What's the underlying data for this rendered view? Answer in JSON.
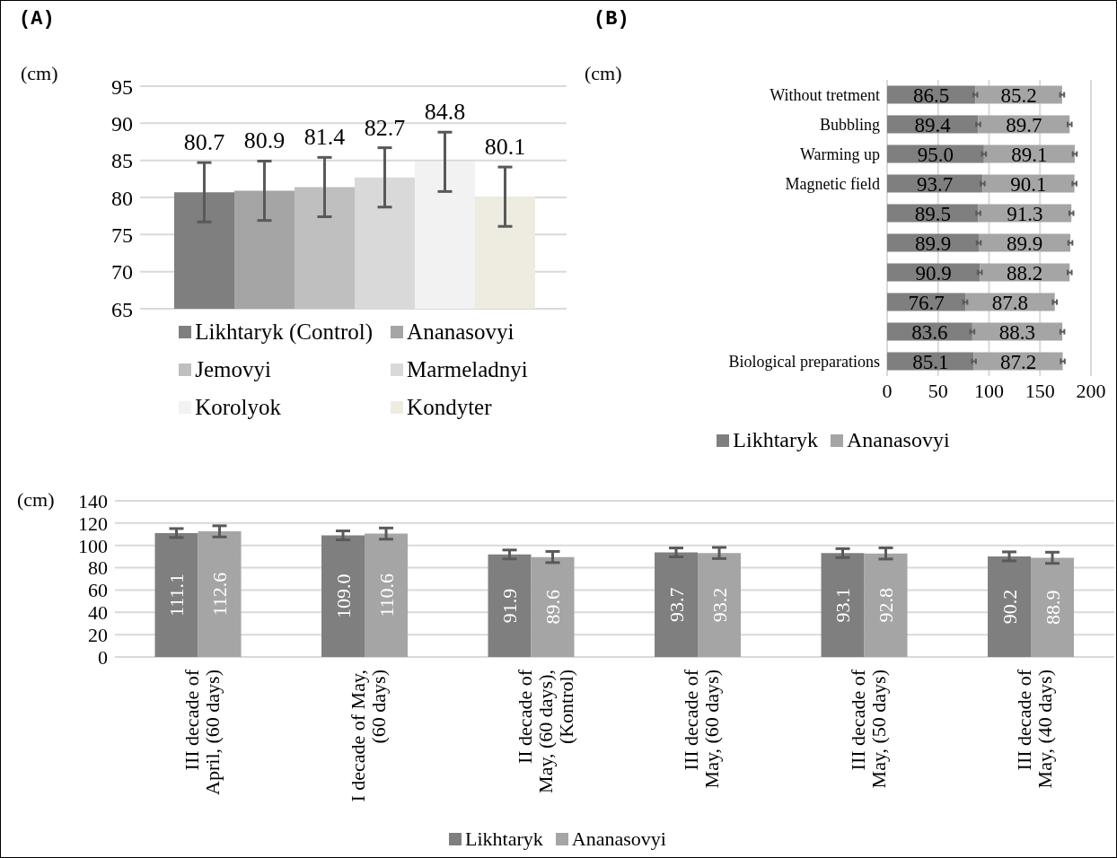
{
  "chart_data": [
    {
      "type": "bar",
      "title": "(A)",
      "ylabel": "(cm)",
      "categories": [
        null
      ],
      "series": [
        {
          "name": "Likhtaryk (Control)",
          "color": "#7f7f7f",
          "values": [
            80.7
          ],
          "errors": [
            4
          ]
        },
        {
          "name": "Ananasovyi",
          "color": "#a5a5a5",
          "values": [
            80.9
          ],
          "errors": [
            4
          ]
        },
        {
          "name": "Jemovyi",
          "color": "#bfbfbf",
          "values": [
            81.4
          ],
          "errors": [
            4
          ]
        },
        {
          "name": "Marmeladnyi",
          "color": "#d9d9d9",
          "values": [
            82.7
          ],
          "errors": [
            4
          ]
        },
        {
          "name": "Korolyok",
          "color": "#f2f2f2",
          "values": [
            84.8
          ],
          "errors": [
            4
          ]
        },
        {
          "name": "Kondyter",
          "color": "#eeece1",
          "values": [
            80.1
          ],
          "errors": [
            4
          ]
        }
      ],
      "ylim": [
        65,
        95
      ],
      "yticks": [
        65,
        70,
        75,
        80,
        85,
        90,
        95
      ],
      "grid": "y",
      "legend": "bottom",
      "data_labels": true
    },
    {
      "type": "bar",
      "title": "(B)",
      "ylabel": "(cm)",
      "orientation": "horizontal",
      "stacked": true,
      "categories": [
        "Without tretment",
        "Bubbling",
        "Warming up",
        "Magnetic field",
        null,
        null,
        null,
        null,
        null,
        "Biological preparations"
      ],
      "series": [
        {
          "name": "Likhtaryk",
          "color": "#7f7f7f",
          "values": [
            86.5,
            89.4,
            95.0,
            93.7,
            89.5,
            89.9,
            90.9,
            76.7,
            83.6,
            85.1
          ],
          "value_labels": [
            "86.5",
            "89.4",
            "95.0",
            "93.7",
            "89.5",
            "89.9",
            "90.9",
            "76.7",
            "83.6",
            "85.1"
          ],
          "errors": [
            2,
            2,
            2,
            2,
            2,
            2,
            2,
            2,
            2,
            2
          ]
        },
        {
          "name": "Ananasovyi",
          "color": "#a5a5a5",
          "values": [
            85.2,
            89.7,
            89.1,
            90.1,
            91.3,
            89.9,
            88.2,
            87.8,
            88.3,
            87.2
          ],
          "value_labels": [
            "85.2",
            "89.7",
            "89.1",
            "90.1",
            "91.3",
            "89.9",
            "88.2",
            "87.8",
            "88.3",
            "87.2"
          ],
          "errors": [
            2,
            2,
            2,
            2,
            2,
            2,
            2,
            2,
            2,
            2
          ]
        }
      ],
      "xlim": [
        0,
        200
      ],
      "xticks": [
        0,
        50,
        100,
        150,
        200
      ],
      "grid": "x",
      "legend": "bottom"
    },
    {
      "type": "bar",
      "ylabel": "(cm)",
      "categories": [
        "III decade of April, (60 days)",
        "I decade of May, (60 days)",
        "II decade of May, (60 days), (Kontrol)",
        "III decade of May, (60 days)",
        "III decade of May, (50 days)",
        "III decade of May, (40 days)"
      ],
      "series": [
        {
          "name": "Likhtaryk",
          "color": "#7f7f7f",
          "values": [
            111.1,
            109.0,
            91.9,
            93.7,
            93.1,
            90.2
          ],
          "value_labels": [
            "111.1",
            "109.0",
            "91.9",
            "93.7",
            "93.1",
            "90.2"
          ],
          "errors": [
            4,
            4,
            4,
            4,
            4,
            4
          ]
        },
        {
          "name": "Ananasovyi",
          "color": "#a5a5a5",
          "values": [
            112.6,
            110.6,
            89.6,
            93.2,
            92.8,
            88.9
          ],
          "value_labels": [
            "112.6",
            "110.6",
            "89.6",
            "93.2",
            "92.8",
            "88.9"
          ],
          "errors": [
            5,
            5,
            5,
            5,
            5,
            5
          ]
        }
      ],
      "ylim": [
        0,
        140
      ],
      "yticks": [
        0,
        20,
        40,
        60,
        80,
        100,
        120,
        140
      ],
      "grid": "y",
      "legend": "bottom"
    }
  ]
}
